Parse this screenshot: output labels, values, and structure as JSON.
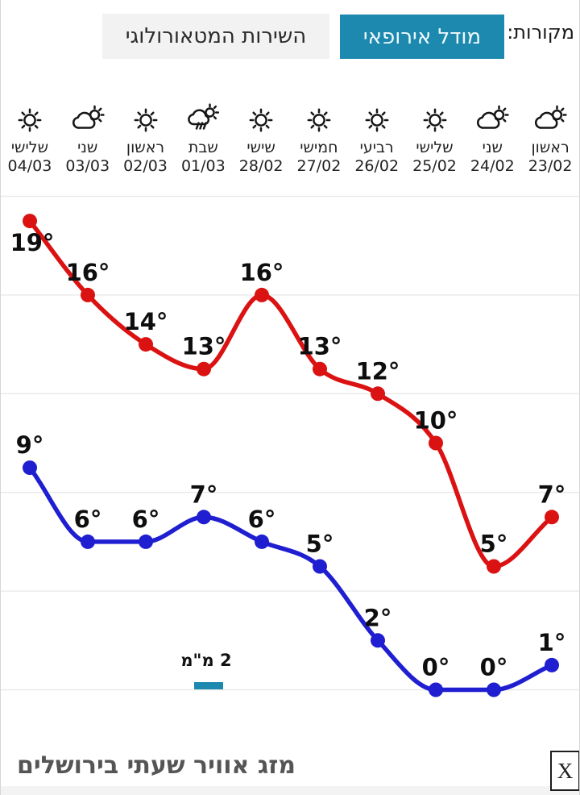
{
  "header": {
    "sources_label": "מקורות:",
    "tabs": [
      {
        "label": "מודל אירופאי",
        "active": true
      },
      {
        "label": "השירות המטאורולוגי",
        "active": false
      }
    ]
  },
  "chart_data": {
    "type": "line",
    "title": "מזג אוויר שעתי בירושלים",
    "direction": "rtl",
    "categories": [
      {
        "day": "ראשון",
        "date": "23/02",
        "icon": "partly-cloudy"
      },
      {
        "day": "שני",
        "date": "24/02",
        "icon": "partly-cloudy"
      },
      {
        "day": "שלישי",
        "date": "25/02",
        "icon": "sunny"
      },
      {
        "day": "רביעי",
        "date": "26/02",
        "icon": "sunny"
      },
      {
        "day": "חמישי",
        "date": "27/02",
        "icon": "sunny"
      },
      {
        "day": "שישי",
        "date": "28/02",
        "icon": "sunny"
      },
      {
        "day": "שבת",
        "date": "01/03",
        "icon": "rain-sun"
      },
      {
        "day": "ראשון",
        "date": "02/03",
        "icon": "sunny"
      },
      {
        "day": "שני",
        "date": "03/03",
        "icon": "partly-cloudy"
      },
      {
        "day": "שלישי",
        "date": "04/03",
        "icon": "sunny"
      }
    ],
    "series": [
      {
        "name": "high",
        "color": "#db1212",
        "values": [
          7,
          5,
          10,
          12,
          13,
          16,
          13,
          14,
          16,
          19
        ]
      },
      {
        "name": "low",
        "color": "#1f1fd1",
        "values": [
          1,
          0,
          0,
          2,
          5,
          6,
          7,
          6,
          6,
          9
        ]
      }
    ],
    "unit": "°",
    "ylim": [
      0,
      20
    ],
    "grid_step": 4,
    "grid": "horizontal",
    "legend": "none",
    "precipitation": {
      "category_index": 6,
      "label": "2 מ\"מ",
      "value_mm": 2,
      "bar_color": "#1d89af"
    }
  },
  "footer": {
    "close_label": "X"
  },
  "colors": {
    "accent": "#1d89af",
    "grid": "#e9e9e9",
    "tab_inactive_bg": "#f2f2f2",
    "high_line": "#db1212",
    "low_line": "#1f1fd1"
  }
}
